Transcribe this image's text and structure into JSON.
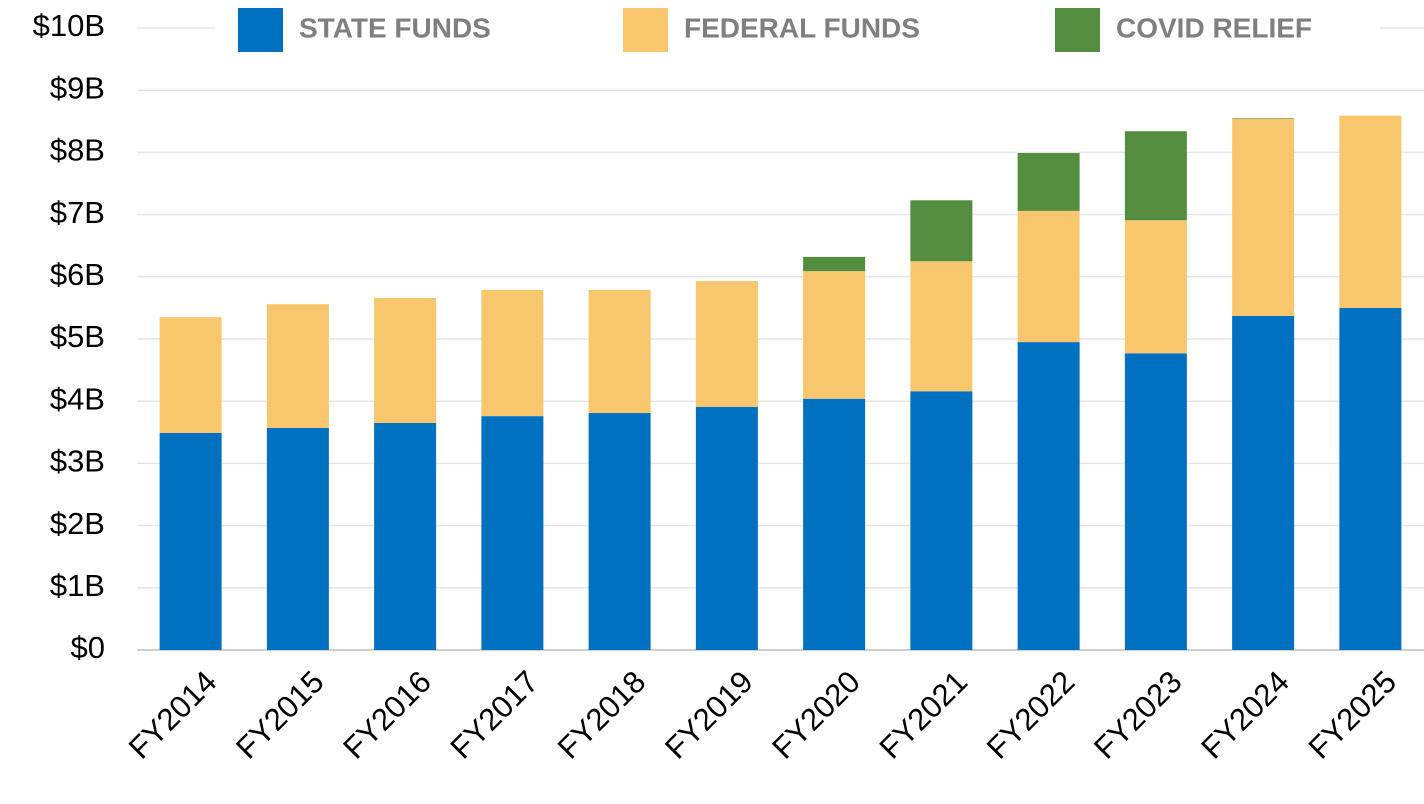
{
  "chart_data": {
    "type": "stacked-bar",
    "categories": [
      "FY2014",
      "FY2015",
      "FY2016",
      "FY2017",
      "FY2018",
      "FY2019",
      "FY2020",
      "FY2021",
      "FY2022",
      "FY2023",
      "FY2024",
      "FY2025"
    ],
    "series": [
      {
        "name": "STATE FUNDS",
        "color": "#0070c0",
        "values": [
          3.49,
          3.57,
          3.65,
          3.76,
          3.81,
          3.91,
          4.04,
          4.16,
          4.95,
          4.77,
          5.37,
          5.5
        ]
      },
      {
        "name": "FEDERAL FUNDS",
        "color": "#f8c66d",
        "values": [
          1.86,
          1.99,
          2.01,
          2.03,
          1.98,
          2.02,
          2.05,
          2.09,
          2.11,
          2.14,
          3.17,
          3.09
        ]
      },
      {
        "name": "COVID RELIEF",
        "color": "#538d3f",
        "values": [
          null,
          null,
          null,
          null,
          null,
          null,
          0.23,
          0.98,
          0.93,
          1.43,
          0.01,
          null
        ]
      }
    ],
    "ylim": [
      0,
      10
    ],
    "yticks": [
      {
        "value": 0,
        "label": "$0"
      },
      {
        "value": 1,
        "label": "$1B"
      },
      {
        "value": 2,
        "label": "$2B"
      },
      {
        "value": 3,
        "label": "$3B"
      },
      {
        "value": 4,
        "label": "$4B"
      },
      {
        "value": 5,
        "label": "$5B"
      },
      {
        "value": 6,
        "label": "$6B"
      },
      {
        "value": 7,
        "label": "$7B"
      },
      {
        "value": 8,
        "label": "$8B"
      },
      {
        "value": 9,
        "label": "$9B"
      },
      {
        "value": 10,
        "label": "$10B"
      }
    ],
    "grid": true,
    "legend": "top"
  }
}
